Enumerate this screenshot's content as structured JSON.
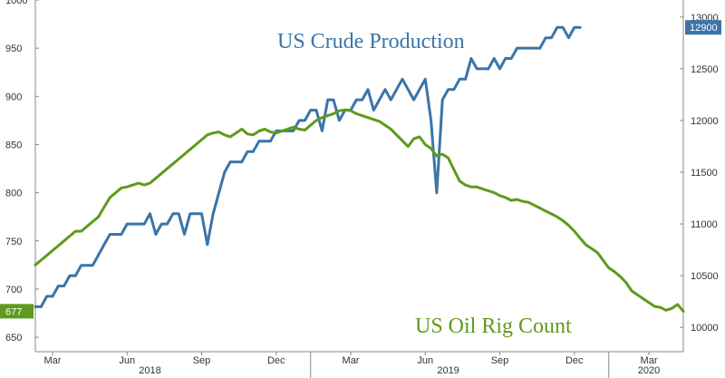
{
  "chart_data": {
    "type": "line",
    "title": "",
    "colors": {
      "production": "#3a75a8",
      "rigs": "#5e9a1c",
      "axis": "#888888"
    },
    "x_axis": {
      "tick_labels": [
        "Mar",
        "Jun",
        "Sep",
        "Dec",
        "Mar",
        "Jun",
        "Sep",
        "Dec",
        "Mar"
      ],
      "tick_positions": [
        3,
        16,
        29,
        42,
        55,
        68,
        81,
        94,
        107
      ],
      "year_labels": [
        {
          "label": "2018",
          "at": 20
        },
        {
          "label": "2019",
          "at": 72
        },
        {
          "label": "2020",
          "at": 107
        }
      ],
      "year_dividers": [
        48,
        100
      ],
      "xlim": [
        0,
        113
      ]
    },
    "left_axis": {
      "ylim": [
        635,
        1000
      ],
      "ticks": [
        650,
        700,
        750,
        800,
        850,
        900,
        950,
        1000
      ],
      "last_value_label": "677"
    },
    "right_axis": {
      "ylim": [
        9765,
        13165
      ],
      "ticks": [
        10000,
        10500,
        11000,
        11500,
        12000,
        12500,
        13000
      ],
      "last_value_label": "12900"
    },
    "series": [
      {
        "name": "US Crude Production",
        "axis": "right",
        "x": [
          0,
          1,
          2,
          3,
          4,
          5,
          6,
          7,
          8,
          9,
          10,
          11,
          12,
          13,
          14,
          15,
          16,
          17,
          18,
          19,
          20,
          21,
          22,
          23,
          24,
          25,
          26,
          27,
          28,
          29,
          30,
          31,
          32,
          33,
          34,
          35,
          36,
          37,
          38,
          39,
          40,
          41,
          42,
          43,
          44,
          45,
          46,
          47,
          48,
          49,
          50,
          51,
          52,
          53,
          54,
          55,
          56,
          57,
          58,
          59,
          60,
          61,
          62,
          63,
          64,
          65,
          66,
          67,
          68,
          69,
          70,
          71,
          72,
          73,
          74,
          75,
          76,
          77,
          78,
          79,
          80,
          81,
          82,
          83,
          84,
          85,
          86,
          87,
          88,
          89,
          90,
          91,
          92,
          93,
          94,
          95
        ],
        "values": [
          10200,
          10200,
          10300,
          10300,
          10400,
          10400,
          10500,
          10500,
          10600,
          10600,
          10600,
          10700,
          10800,
          10900,
          10900,
          10900,
          11000,
          11000,
          11000,
          11000,
          11100,
          10900,
          11000,
          11000,
          11100,
          11100,
          10900,
          11100,
          11100,
          11100,
          10800,
          11100,
          11300,
          11500,
          11600,
          11600,
          11600,
          11700,
          11700,
          11800,
          11800,
          11800,
          11900,
          11900,
          11900,
          11900,
          12000,
          12000,
          12100,
          12100,
          11900,
          12200,
          12200,
          12000,
          12100,
          12100,
          12200,
          12200,
          12300,
          12100,
          12200,
          12300,
          12200,
          12300,
          12400,
          12300,
          12200,
          12300,
          12400,
          12000,
          11300,
          12200,
          12300,
          12300,
          12400,
          12400,
          12600,
          12500,
          12500,
          12500,
          12600,
          12500,
          12600,
          12600,
          12700,
          12700,
          12700,
          12700,
          12700,
          12800,
          12800,
          12900,
          12900,
          12800,
          12900,
          12900
        ]
      },
      {
        "name": "US Oil Rig Count",
        "axis": "left",
        "x": [
          0,
          1,
          2,
          3,
          4,
          5,
          6,
          7,
          8,
          9,
          10,
          11,
          12,
          13,
          14,
          15,
          16,
          17,
          18,
          19,
          20,
          21,
          22,
          23,
          24,
          25,
          26,
          27,
          28,
          29,
          30,
          31,
          32,
          33,
          34,
          35,
          36,
          37,
          38,
          39,
          40,
          41,
          42,
          43,
          44,
          45,
          46,
          47,
          48,
          49,
          50,
          51,
          52,
          53,
          54,
          55,
          56,
          57,
          58,
          59,
          60,
          61,
          62,
          63,
          64,
          65,
          66,
          67,
          68,
          69,
          70,
          71,
          72,
          73,
          74,
          75,
          76,
          77,
          78,
          79,
          80,
          81,
          82,
          83,
          84,
          85,
          86,
          87,
          88,
          89,
          90,
          91,
          92,
          93,
          94,
          95,
          96,
          97,
          98,
          99,
          100,
          101,
          102,
          103,
          104,
          105,
          106,
          107,
          108,
          109,
          110,
          111,
          112,
          113
        ],
        "values": [
          725,
          730,
          735,
          740,
          745,
          750,
          755,
          760,
          760,
          765,
          770,
          775,
          785,
          795,
          800,
          805,
          806,
          808,
          810,
          808,
          810,
          815,
          820,
          825,
          830,
          835,
          840,
          845,
          850,
          855,
          860,
          862,
          863,
          860,
          858,
          862,
          866,
          861,
          860,
          864,
          866,
          863,
          862,
          864,
          866,
          868,
          866,
          865,
          870,
          875,
          878,
          880,
          882,
          885,
          886,
          885,
          882,
          880,
          878,
          876,
          874,
          870,
          866,
          860,
          854,
          848,
          856,
          858,
          850,
          846,
          838,
          840,
          836,
          824,
          812,
          808,
          806,
          806,
          804,
          802,
          800,
          797,
          795,
          792,
          793,
          791,
          790,
          787,
          784,
          781,
          778,
          775,
          771,
          766,
          760,
          753,
          746,
          742,
          738,
          730,
          722,
          718,
          713,
          707,
          698,
          694,
          690,
          686,
          682,
          681,
          678,
          680,
          684,
          677
        ]
      }
    ]
  }
}
